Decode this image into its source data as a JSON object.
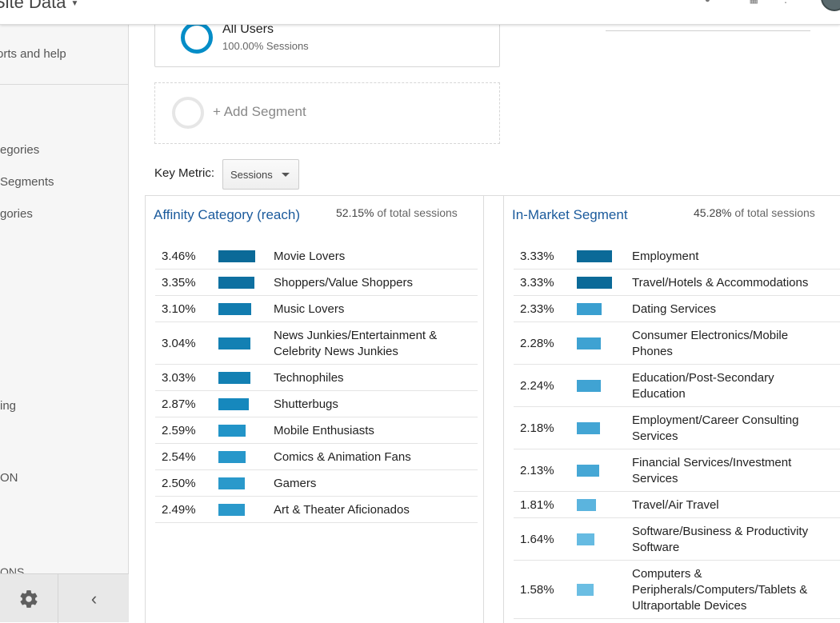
{
  "header": {
    "site_title": "Site Data"
  },
  "sidebar": {
    "items": [
      "orts and help",
      "egories",
      "Segments",
      "gories",
      "ing",
      "ON",
      "ONS"
    ]
  },
  "segments": {
    "all_users": {
      "name": "All Users",
      "subtitle": "100.00% Sessions"
    },
    "add_label": "+ Add Segment"
  },
  "key_metric": {
    "label": "Key Metric:",
    "value": "Sessions"
  },
  "affinity": {
    "title": "Affinity Category (reach)",
    "total_pct": "52.15%",
    "total_text": "of total sessions",
    "rows": [
      {
        "pct": "3.46%",
        "label": "Movie Lovers",
        "value": 3.46,
        "color": "#0b6a98"
      },
      {
        "pct": "3.35%",
        "label": "Shoppers/Value Shoppers",
        "value": 3.35,
        "color": "#0e70a1"
      },
      {
        "pct": "3.10%",
        "label": "Music Lovers",
        "value": 3.1,
        "color": "#127caf"
      },
      {
        "pct": "3.04%",
        "label": "News Junkies/Entertainment & Celebrity News Junkies",
        "value": 3.04,
        "color": "#1380b3"
      },
      {
        "pct": "3.03%",
        "label": "Technophiles",
        "value": 3.03,
        "color": "#1380b3"
      },
      {
        "pct": "2.87%",
        "label": "Shutterbugs",
        "value": 2.87,
        "color": "#1688bd"
      },
      {
        "pct": "2.59%",
        "label": "Mobile Enthusiasts",
        "value": 2.59,
        "color": "#2294c8"
      },
      {
        "pct": "2.54%",
        "label": "Comics & Animation Fans",
        "value": 2.54,
        "color": "#2797ca"
      },
      {
        "pct": "2.50%",
        "label": "Gamers",
        "value": 2.5,
        "color": "#2a99cb"
      },
      {
        "pct": "2.49%",
        "label": "Art & Theater Aficionados",
        "value": 2.49,
        "color": "#2a99cb"
      }
    ]
  },
  "inmarket": {
    "title": "In-Market Segment",
    "total_pct": "45.28%",
    "total_text": "of total sessions",
    "rows": [
      {
        "pct": "3.33%",
        "label": "Employment",
        "value": 3.33,
        "color": "#0b6a98"
      },
      {
        "pct": "3.33%",
        "label": "Travel/Hotels & Accommodations",
        "value": 3.33,
        "color": "#0b6a98"
      },
      {
        "pct": "2.33%",
        "label": "Dating Services",
        "value": 2.33,
        "color": "#3a9fd0"
      },
      {
        "pct": "2.28%",
        "label": "Consumer Electronics/Mobile Phones",
        "value": 2.28,
        "color": "#3ea2d2"
      },
      {
        "pct": "2.24%",
        "label": "Education/Post-Secondary Education",
        "value": 2.24,
        "color": "#40a3d3"
      },
      {
        "pct": "2.18%",
        "label": "Employment/Career Consulting Services",
        "value": 2.18,
        "color": "#43a5d4"
      },
      {
        "pct": "2.13%",
        "label": "Financial Services/Investment Services",
        "value": 2.13,
        "color": "#46a7d5"
      },
      {
        "pct": "1.81%",
        "label": "Travel/Air Travel",
        "value": 1.81,
        "color": "#5bb4de"
      },
      {
        "pct": "1.64%",
        "label": "Software/Business & Productivity Software",
        "value": 1.64,
        "color": "#66bbe2"
      },
      {
        "pct": "1.58%",
        "label": "Computers & Peripherals/Computers/Tablets & Ultraportable Devices",
        "value": 1.58,
        "color": "#6bbee3"
      }
    ]
  }
}
